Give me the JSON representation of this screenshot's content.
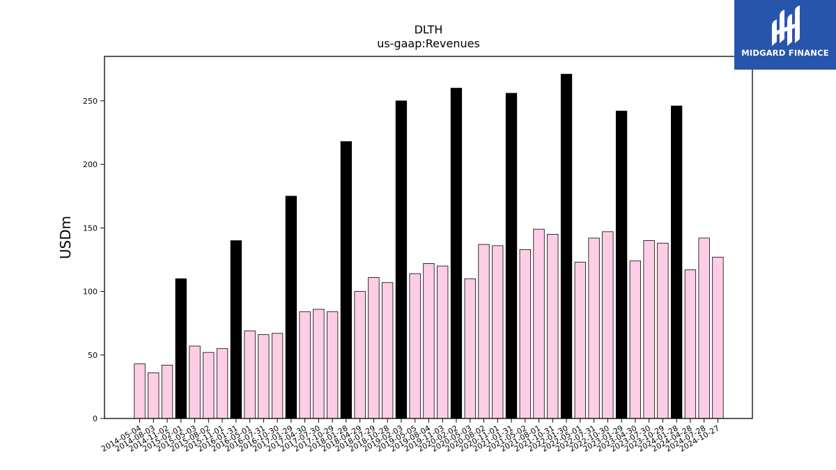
{
  "brand": {
    "name": "MIDGARD FINANCE",
    "color": "#2855ac"
  },
  "chart_data": {
    "type": "bar",
    "title": "DLTH",
    "subtitle": "us-gaap:Revenues",
    "xlabel": "",
    "ylabel": "USDm",
    "ylim": [
      0,
      285
    ],
    "yticks": [
      0,
      50,
      100,
      150,
      200,
      250
    ],
    "grid": false,
    "colors": {
      "quarter": "#fccde5",
      "annual": "#000000",
      "edge": "#000000"
    },
    "categories": [
      "2014-05-04",
      "2014-08-03",
      "2014-11-02",
      "2015-02-01",
      "2015-05-03",
      "2015-08-02",
      "2015-11-01",
      "2016-01-31",
      "2016-05-01",
      "2016-07-31",
      "2016-10-30",
      "2017-01-29",
      "2017-04-30",
      "2017-07-30",
      "2017-10-29",
      "2018-01-28",
      "2018-04-29",
      "2018-07-29",
      "2018-10-28",
      "2019-02-03",
      "2019-05-05",
      "2019-08-04",
      "2019-11-03",
      "2020-02-02",
      "2020-05-03",
      "2020-08-02",
      "2020-11-01",
      "2021-01-31",
      "2021-05-02",
      "2021-08-01",
      "2021-10-31",
      "2022-01-30",
      "2022-05-01",
      "2022-07-31",
      "2022-10-30",
      "2023-01-29",
      "2023-04-30",
      "2023-07-30",
      "2023-10-29",
      "2024-01-28",
      "2024-04-28",
      "2024-07-28",
      "2024-10-27"
    ],
    "values": [
      43,
      36,
      42,
      110,
      57,
      52,
      55,
      140,
      69,
      66,
      67,
      175,
      84,
      86,
      84,
      218,
      100,
      111,
      107,
      250,
      114,
      122,
      120,
      260,
      110,
      137,
      136,
      256,
      133,
      149,
      145,
      271,
      123,
      142,
      147,
      242,
      124,
      140,
      138,
      246,
      117,
      142,
      127
    ],
    "annual_flags": [
      0,
      0,
      0,
      1,
      0,
      0,
      0,
      1,
      0,
      0,
      0,
      1,
      0,
      0,
      0,
      1,
      0,
      0,
      0,
      1,
      0,
      0,
      0,
      1,
      0,
      0,
      0,
      1,
      0,
      0,
      0,
      1,
      0,
      0,
      0,
      1,
      0,
      0,
      0,
      1,
      0,
      0,
      0
    ]
  }
}
